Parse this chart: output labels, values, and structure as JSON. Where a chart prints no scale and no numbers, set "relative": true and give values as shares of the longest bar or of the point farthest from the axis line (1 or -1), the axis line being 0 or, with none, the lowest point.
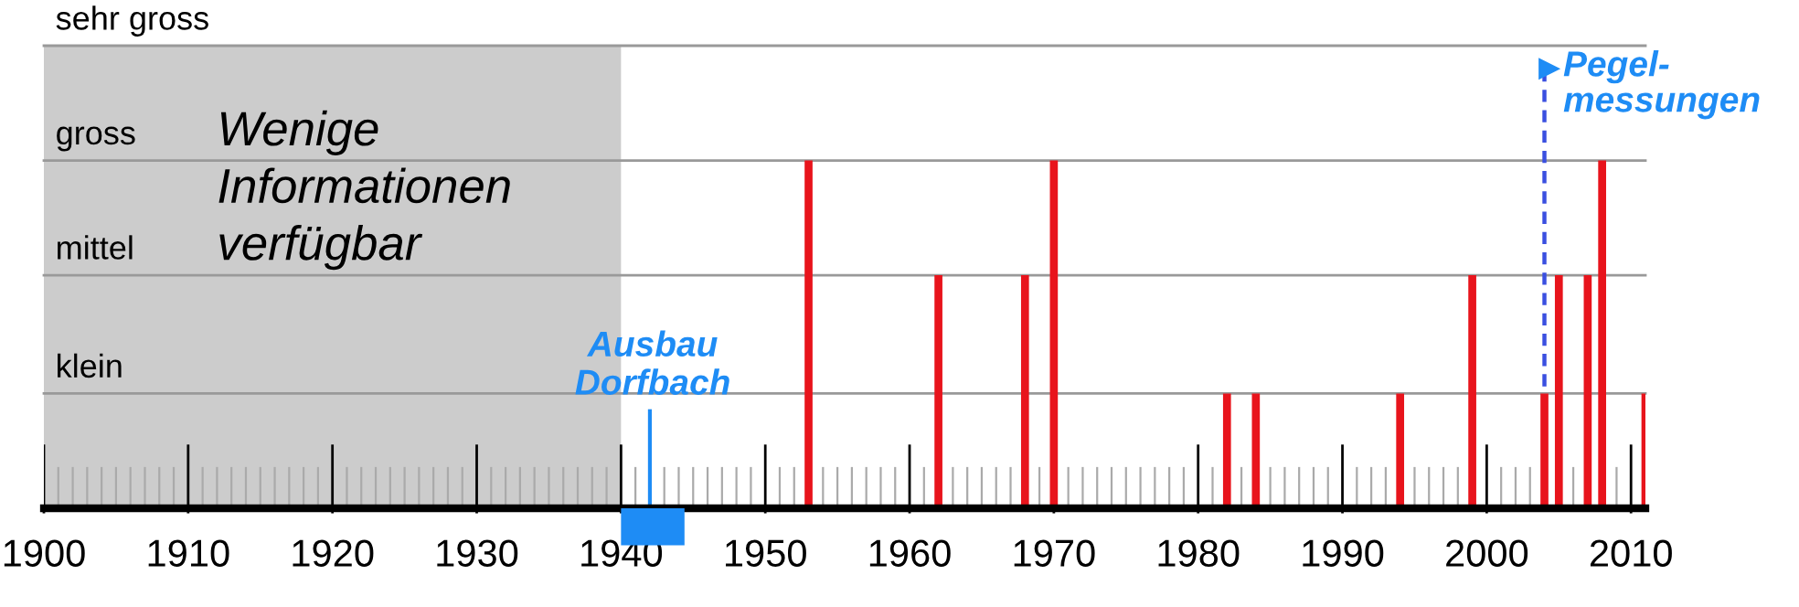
{
  "chart_data": {
    "type": "bar",
    "x": [
      1953,
      1962,
      1968,
      1970,
      1982,
      1984,
      1994,
      1999,
      2004,
      2005,
      2007,
      2008,
      2011
    ],
    "values": [
      1,
      0.67,
      0.67,
      1,
      0.33,
      0.33,
      0.33,
      0.67,
      0.33,
      0.67,
      0.67,
      1,
      0.33
    ],
    "relative": true,
    "color": "#e8141c",
    "xlim": [
      1900,
      2011
    ],
    "xticks": [
      1900,
      1910,
      1920,
      1930,
      1940,
      1950,
      1960,
      1970,
      1980,
      1990,
      2000,
      2010
    ],
    "bands": [
      {
        "axis": "x",
        "from": 1900,
        "to": 1940,
        "label": "Wenige\nInformationen\nverfügbar",
        "color": "#cccccc"
      }
    ],
    "ref_lines": [
      {
        "axis": "y",
        "value": 0.33,
        "label": "klein",
        "color": "#999999"
      },
      {
        "axis": "y",
        "value": 0.67,
        "label": "mittel",
        "color": "#999999"
      },
      {
        "axis": "y",
        "value": 1,
        "label": "gross",
        "color": "#999999"
      },
      {
        "axis": "y",
        "value": 1.33,
        "label": "sehr gross",
        "color": "#999999"
      },
      {
        "axis": "x",
        "value": 1942,
        "label": "Ausbau\nDorfbach",
        "color": "#1e8cf5",
        "line_style": "solid"
      },
      {
        "axis": "x",
        "value": 2004,
        "label": "Pegel-\nmessungen",
        "color": "#3a4fe0",
        "line_style": "dashed"
      }
    ]
  }
}
